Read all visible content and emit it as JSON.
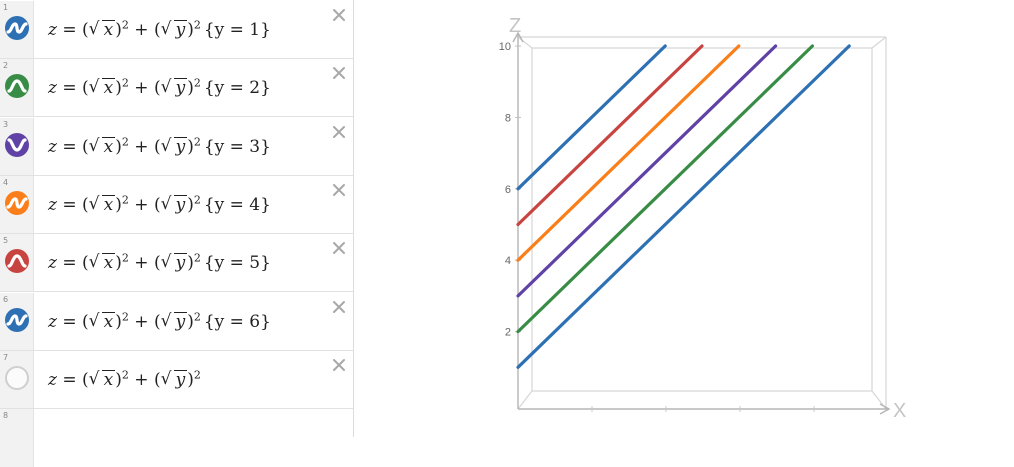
{
  "expressions": [
    {
      "num": "1",
      "z": "z",
      "x": "x",
      "y": "y",
      "exp": "2",
      "condition": "{y = 1}",
      "color": "#2d70b3",
      "shape": "wave"
    },
    {
      "num": "2",
      "z": "z",
      "x": "x",
      "y": "y",
      "exp": "2",
      "condition": "{y = 2}",
      "color": "#388c46",
      "shape": "mountain"
    },
    {
      "num": "3",
      "z": "z",
      "x": "x",
      "y": "y",
      "exp": "2",
      "condition": "{y = 3}",
      "color": "#6042a6",
      "shape": "valley"
    },
    {
      "num": "4",
      "z": "z",
      "x": "x",
      "y": "y",
      "exp": "2",
      "condition": "{y = 4}",
      "color": "#fa7e19",
      "shape": "wave"
    },
    {
      "num": "5",
      "z": "z",
      "x": "x",
      "y": "y",
      "exp": "2",
      "condition": "{y = 5}",
      "color": "#c74440",
      "shape": "mountain"
    },
    {
      "num": "6",
      "z": "z",
      "x": "x",
      "y": "y",
      "exp": "2",
      "condition": "{y = 6}",
      "color": "#2d70b3",
      "shape": "wave"
    },
    {
      "num": "7",
      "z": "z",
      "x": "x",
      "y": "y",
      "exp": "2",
      "condition": "",
      "color": "",
      "shape": "hollow"
    }
  ],
  "empty_row": {
    "num": "8"
  },
  "graph": {
    "axis_x_label": "X",
    "axis_z_label": "Z",
    "z_ticks": [
      "2",
      "4",
      "6",
      "8",
      "10"
    ],
    "z_range": [
      0,
      10
    ],
    "x_range": [
      0,
      10
    ],
    "lines": [
      {
        "y": 1,
        "color": "#2d70b3"
      },
      {
        "y": 2,
        "color": "#388c46"
      },
      {
        "y": 3,
        "color": "#6042a6"
      },
      {
        "y": 4,
        "color": "#fa7e19"
      },
      {
        "y": 5,
        "color": "#c74440"
      },
      {
        "y": 6,
        "color": "#2d70b3"
      }
    ]
  }
}
